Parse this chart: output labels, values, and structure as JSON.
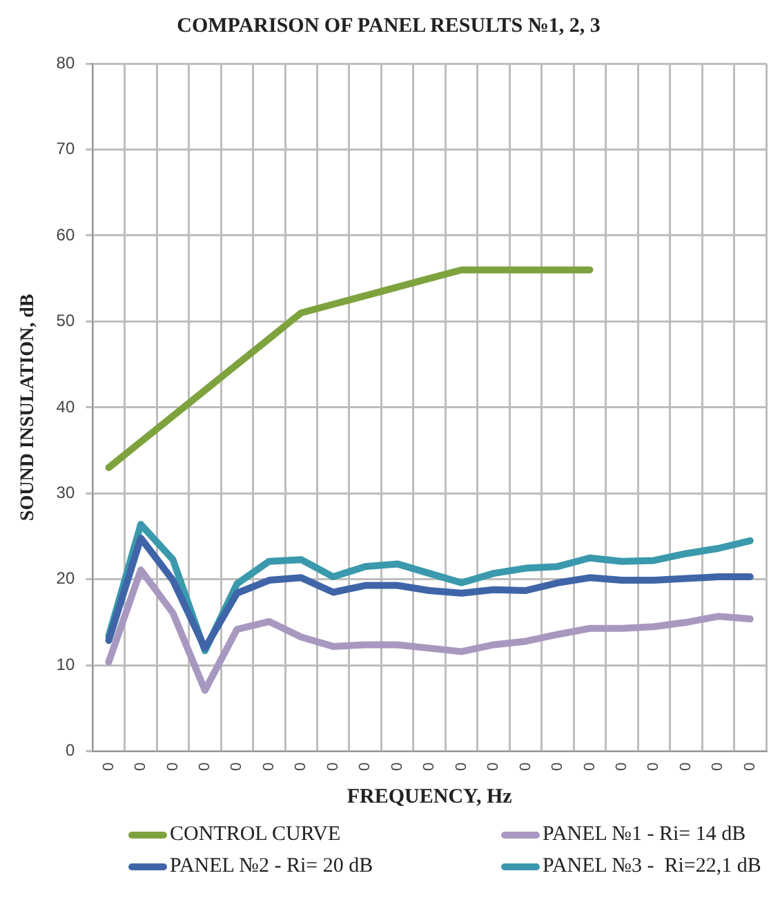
{
  "chart_data": {
    "type": "line",
    "title": "COMPARISON OF PANEL RESULTS №1, 2, 3",
    "xlabel": "FREQUENCY, Hz",
    "ylabel": "SOUND INSULATION, dB",
    "categories": [
      "0",
      "0",
      "0",
      "0",
      "0",
      "0",
      "0",
      "0",
      "0",
      "0",
      "0",
      "0",
      "0",
      "0",
      "0",
      "0",
      "0",
      "0",
      "0",
      "0",
      "0"
    ],
    "ylim": [
      0,
      80
    ],
    "yticks": [
      0,
      10,
      20,
      30,
      40,
      50,
      60,
      70,
      80
    ],
    "grid": true,
    "legend": "bottom",
    "marker": "none",
    "line_style": "solid",
    "series": [
      {
        "name": "CONTROL CURVE",
        "color": "#7ea33e",
        "values": [
          33,
          36,
          39,
          42,
          45,
          48,
          51,
          52,
          53,
          54,
          55,
          56,
          56,
          56,
          56,
          56,
          null,
          null,
          null,
          null,
          null
        ]
      },
      {
        "name": "PANEL №1 - Ri= 14 dB",
        "color": "#a898c0",
        "values": [
          10.4,
          21.1,
          16.1,
          7.1,
          14.2,
          15.1,
          13.3,
          12.2,
          12.4,
          12.4,
          12.0,
          11.6,
          12.4,
          12.8,
          13.6,
          14.3,
          14.3,
          14.5,
          15.0,
          15.7,
          15.4
        ]
      },
      {
        "name": "PANEL №2 - Ri= 20 dB",
        "color": "#3f65a8",
        "values": [
          12.9,
          24.8,
          19.9,
          12.0,
          18.4,
          19.9,
          20.2,
          18.5,
          19.3,
          19.3,
          18.7,
          18.4,
          18.8,
          18.7,
          19.6,
          20.2,
          19.9,
          19.9,
          20.1,
          20.3,
          20.3
        ]
      },
      {
        "name": "PANEL №3 -  Ri=22,1 dB",
        "color": "#3a99ac",
        "values": [
          13.4,
          26.4,
          22.3,
          11.7,
          19.5,
          22.1,
          22.3,
          20.3,
          21.5,
          21.8,
          20.7,
          19.6,
          20.7,
          21.3,
          21.5,
          22.5,
          22.1,
          22.2,
          23.0,
          23.6,
          24.5
        ]
      }
    ]
  }
}
